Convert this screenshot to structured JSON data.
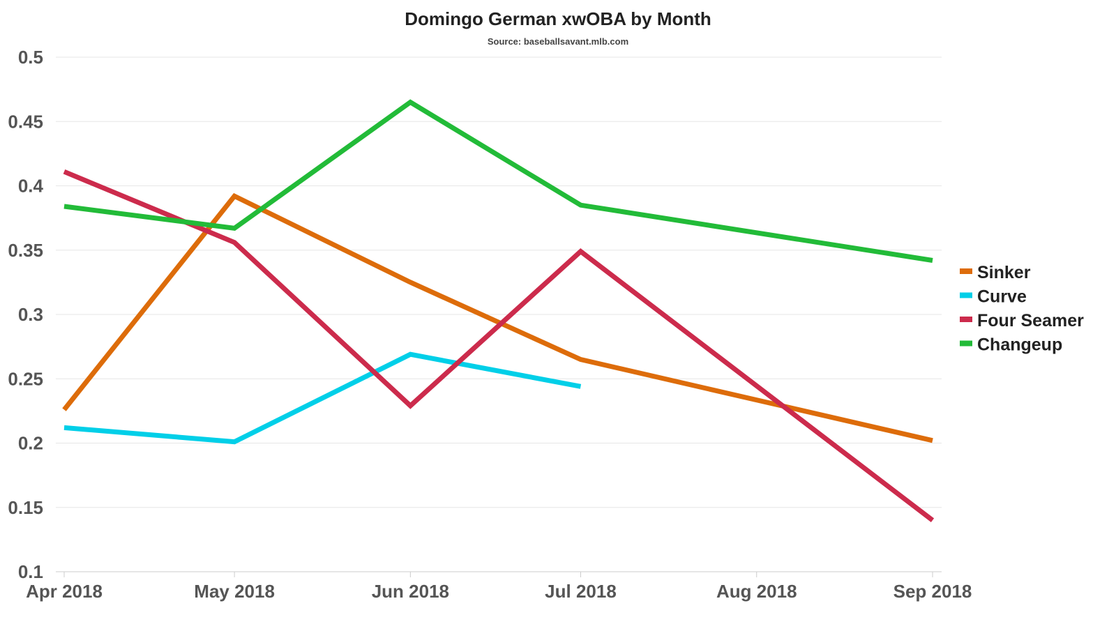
{
  "chart_data": {
    "type": "line",
    "title": "Domingo German xwOBA by Month",
    "subtitle": "Source: baseballsavant.mlb.com",
    "xlabel": "",
    "ylabel": "",
    "ylim": [
      0.1,
      0.5
    ],
    "yticks": [
      "0.1",
      "0.15",
      "0.2",
      "0.25",
      "0.3",
      "0.35",
      "0.4",
      "0.45",
      "0.5"
    ],
    "xticks": [
      "Apr 2018",
      "May 2018",
      "Jun 2018",
      "Jul 2018",
      "Aug 2018",
      "Sep 2018"
    ],
    "x_months": [
      4,
      5,
      6,
      7,
      8,
      9
    ],
    "grid": true,
    "legend_position": "right",
    "series": [
      {
        "name": "Sinker",
        "color": "#dd6c0a",
        "x": [
          "Apr 2018",
          "May 2018",
          "Jun 2018",
          "Jul 2018",
          "Sep 2018"
        ],
        "values": [
          0.226,
          0.392,
          0.325,
          0.265,
          0.202
        ]
      },
      {
        "name": "Curve",
        "color": "#00cfe8",
        "x": [
          "Apr 2018",
          "May 2018",
          "Jun 2018",
          "Jul 2018"
        ],
        "values": [
          0.212,
          0.201,
          0.269,
          0.244
        ]
      },
      {
        "name": "Four Seamer",
        "color": "#cc2b4c",
        "x": [
          "Apr 2018",
          "May 2018",
          "Jun 2018",
          "Jul 2018",
          "Sep 2018"
        ],
        "values": [
          0.411,
          0.356,
          0.229,
          0.349,
          0.14
        ]
      },
      {
        "name": "Changeup",
        "color": "#22bb38",
        "x": [
          "Apr 2018",
          "May 2018",
          "Jun 2018",
          "Jul 2018",
          "Sep 2018"
        ],
        "values": [
          0.384,
          0.367,
          0.465,
          0.385,
          0.342
        ]
      }
    ]
  }
}
